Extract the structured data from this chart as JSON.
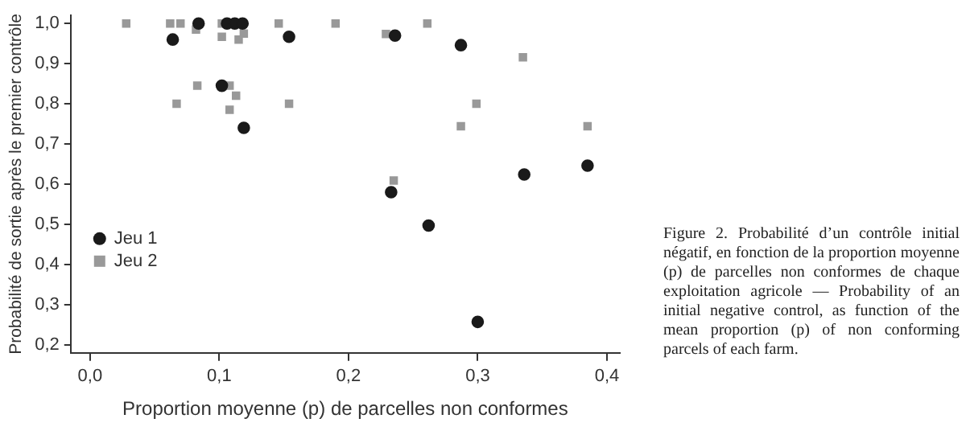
{
  "chart_data": {
    "type": "scatter",
    "xlabel": "Proportion moyenne (p) de parcelles non conformes",
    "ylabel": "Probabilité de sortie après le premier contrôle",
    "xlim": [
      -0.015,
      0.41
    ],
    "ylim": [
      0.18,
      1.02
    ],
    "xticks": [
      {
        "value": 0,
        "label": "0,0"
      },
      {
        "value": 0.1,
        "label": "0,1"
      },
      {
        "value": 0.2,
        "label": "0,2"
      },
      {
        "value": 0.3,
        "label": "0,3"
      },
      {
        "value": 0.4,
        "label": "0,4"
      }
    ],
    "yticks": [
      {
        "value": 0.2,
        "label": "0,2"
      },
      {
        "value": 0.3,
        "label": "0,3"
      },
      {
        "value": 0.4,
        "label": "0,4"
      },
      {
        "value": 0.5,
        "label": "0,5"
      },
      {
        "value": 0.6,
        "label": "0,6"
      },
      {
        "value": 0.7,
        "label": "0,7"
      },
      {
        "value": 0.8,
        "label": "0,8"
      },
      {
        "value": 0.9,
        "label": "0,9"
      },
      {
        "value": 1.0,
        "label": "1,0"
      }
    ],
    "grid": false,
    "legend": "bottom left",
    "series": [
      {
        "name": "Jeu 1",
        "color": "#1a1a1a",
        "marker": "circle",
        "x": [
          0.084,
          0.106,
          0.112,
          0.118,
          0.064,
          0.154,
          0.102,
          0.119,
          0.236,
          0.287,
          0.385,
          0.336,
          0.233,
          0.262,
          0.3
        ],
        "values": [
          1.0,
          1.0,
          1.0,
          1.0,
          0.96,
          0.967,
          0.845,
          0.74,
          0.97,
          0.946,
          0.646,
          0.624,
          0.58,
          0.497,
          0.257
        ]
      },
      {
        "name": "Jeu 2",
        "color": "#999999",
        "marker": "square",
        "x": [
          0.028,
          0.062,
          0.07,
          0.082,
          0.102,
          0.102,
          0.115,
          0.119,
          0.146,
          0.19,
          0.083,
          0.108,
          0.113,
          0.067,
          0.108,
          0.154,
          0.261,
          0.229,
          0.335,
          0.299,
          0.287,
          0.385,
          0.235
        ],
        "values": [
          1.0,
          1.0,
          1.0,
          0.985,
          1.0,
          0.967,
          0.96,
          0.975,
          1.0,
          1.0,
          0.845,
          0.845,
          0.82,
          0.8,
          0.785,
          0.8,
          1.0,
          0.974,
          0.916,
          0.8,
          0.744,
          0.744,
          0.609
        ]
      }
    ],
    "annotations": [
      "Figure 2. Probabilité d’un contrôle initial négatif, en fonction de la proportion moyenne (p) de parcelles non conformes de chaque exploitation agricole — Probability of an initial negative control, as function of the mean proportion (p) of non conforming parcels of each farm."
    ]
  }
}
